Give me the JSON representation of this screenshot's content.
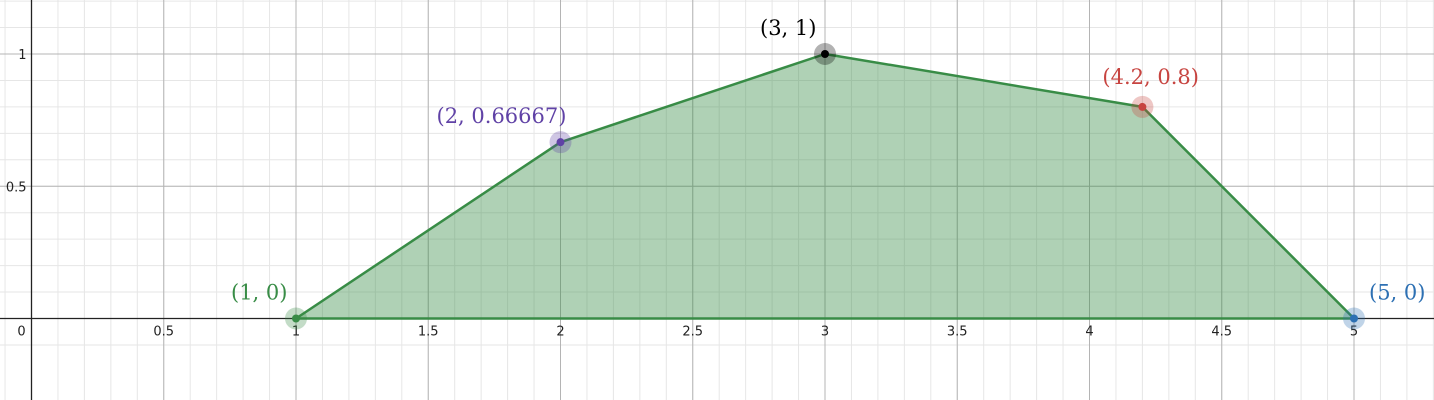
{
  "chart_data": {
    "type": "area",
    "title": "",
    "xlabel": "",
    "ylabel": "",
    "xlim": [
      -0.1,
      5.3
    ],
    "ylim": [
      -0.15,
      1.2
    ],
    "grid": true,
    "x_ticks": [
      {
        "value": 0,
        "label": "0"
      },
      {
        "value": 0.5,
        "label": "0.5"
      },
      {
        "value": 1,
        "label": "1"
      },
      {
        "value": 1.5,
        "label": "1.5"
      },
      {
        "value": 2,
        "label": "2"
      },
      {
        "value": 2.5,
        "label": "2.5"
      },
      {
        "value": 3,
        "label": "3"
      },
      {
        "value": 3.5,
        "label": "3.5"
      },
      {
        "value": 4,
        "label": "4"
      },
      {
        "value": 4.5,
        "label": "4.5"
      },
      {
        "value": 5,
        "label": "5"
      }
    ],
    "y_ticks": [
      {
        "value": 0.5,
        "label": "0.5"
      },
      {
        "value": 1,
        "label": "1"
      }
    ],
    "polygon": {
      "vertices": [
        [
          1,
          0
        ],
        [
          2,
          0.66667
        ],
        [
          3,
          1
        ],
        [
          4.2,
          0.8
        ],
        [
          5,
          0
        ]
      ],
      "stroke_color": "#388c46",
      "fill_color": "#388c46"
    },
    "points": [
      {
        "x": 1,
        "y": 0,
        "label": "(1, 0)",
        "color": "#388c46"
      },
      {
        "x": 2,
        "y": 0.66667,
        "label": "(2, 0.66667)",
        "color": "#6042a6"
      },
      {
        "x": 3,
        "y": 1,
        "label": "(3, 1)",
        "color": "#000000"
      },
      {
        "x": 4.2,
        "y": 0.8,
        "label": "(4.2, 0.8)",
        "color": "#c74440"
      },
      {
        "x": 5,
        "y": 0,
        "label": "(5, 0)",
        "color": "#2d70b3"
      }
    ]
  }
}
